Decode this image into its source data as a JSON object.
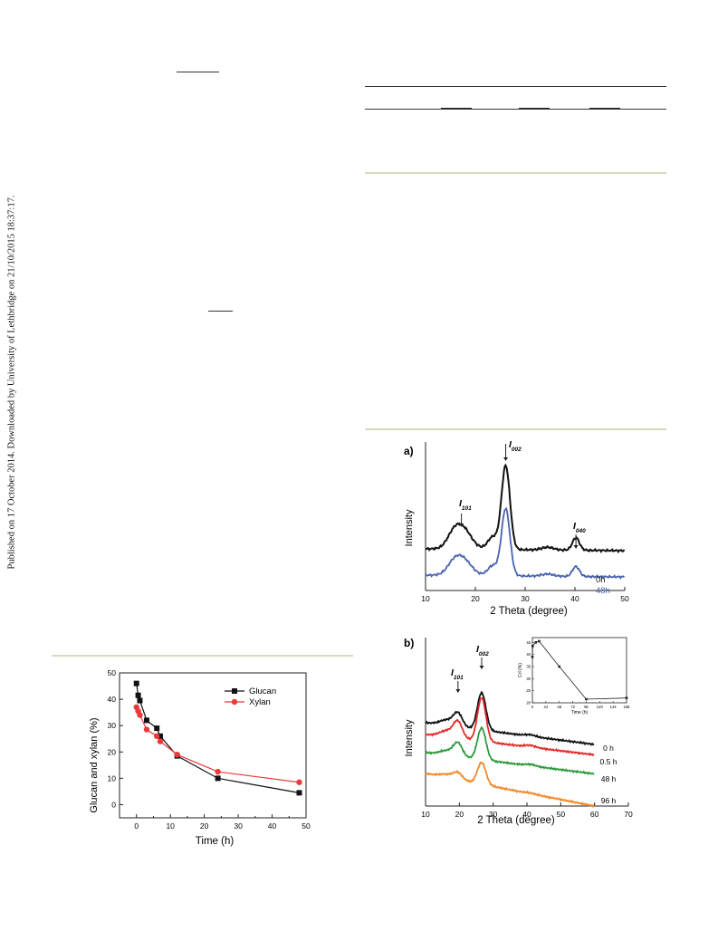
{
  "sidebar": {
    "published_note": "Published on 17 October 2014. Downloaded by University of Lethbridge on 21/10/2015 18:37:17."
  },
  "figures": {
    "glucan": {
      "xlabel": "Time (h)",
      "ylabel": "Glucan and xylan (%)",
      "x_ticks": [
        "0",
        "10",
        "20",
        "30",
        "40",
        "50"
      ],
      "y_ticks": [
        "0",
        "10",
        "20",
        "30",
        "40",
        "50"
      ],
      "legend": [
        "Glucan",
        "Xylan"
      ]
    },
    "xrd_a": {
      "panel_label": "a)",
      "xlabel": "2 Theta (degree)",
      "ylabel": "Intensity",
      "x_ticks": [
        "10",
        "20",
        "30",
        "40",
        "50"
      ],
      "peak_labels": [
        {
          "main": "I",
          "sub": "101"
        },
        {
          "main": "I",
          "sub": "002"
        },
        {
          "main": "I",
          "sub": "040"
        }
      ],
      "curve_labels": [
        "0h",
        "48h"
      ]
    },
    "xrd_b": {
      "panel_label": "b)",
      "xlabel": "2 Theta (degree)",
      "ylabel": "Intensity",
      "x_ticks": [
        "10",
        "20",
        "30",
        "40",
        "50",
        "60",
        "70"
      ],
      "peak_labels": [
        {
          "main": "I",
          "sub": "101"
        },
        {
          "main": "I",
          "sub": "002"
        }
      ],
      "curve_labels": [
        "0 h",
        "0.5 h",
        "48 h",
        "96 h"
      ],
      "inset": {
        "xlabel": "Time (h)",
        "ylabel": "CrI (%)",
        "x_ticks": [
          "0",
          "24",
          "48",
          "72",
          "96",
          "120",
          "144",
          "168"
        ],
        "y_ticks": [
          "20",
          "25",
          "30",
          "35",
          "40",
          "45"
        ]
      }
    }
  },
  "colors": {
    "glucan": "#111111",
    "xylan": "#e83a3a",
    "curve_0h": "#111111",
    "curve_48h_a": "#4a63b0",
    "curve_05h": "#e52b2b",
    "curve_48h_b": "#2e9a3c",
    "curve_96h": "#f08a2a"
  },
  "chart_data": [
    {
      "type": "line",
      "xlabel": "Time (h)",
      "ylabel": "Glucan and xylan (%)",
      "xlim": [
        -5,
        50
      ],
      "ylim": [
        -5,
        50
      ],
      "series": [
        {
          "name": "Glucan",
          "x": [
            0,
            0.5,
            1,
            3,
            6,
            7,
            12,
            24,
            48
          ],
          "y": [
            46,
            41.5,
            39.5,
            32,
            29,
            26,
            18.5,
            10,
            4.5
          ]
        },
        {
          "name": "Xylan",
          "x": [
            0,
            0.5,
            1,
            3,
            6,
            7,
            12,
            24,
            48
          ],
          "y": [
            37,
            35.5,
            34,
            28.5,
            26,
            24,
            19,
            12.5,
            8.5
          ]
        }
      ]
    },
    {
      "type": "line",
      "xlabel": "2 Theta (degree)",
      "ylabel": "Intensity",
      "xlim": [
        10,
        50
      ],
      "series": [
        {
          "name": "0h",
          "peaks": [
            {
              "x": 17.2,
              "label": "I101"
            },
            {
              "x": 26.1,
              "label": "I002"
            },
            {
              "x": 40.2,
              "label": "I040"
            }
          ]
        },
        {
          "name": "48h",
          "peaks": [
            {
              "x": 17.2
            },
            {
              "x": 26.1
            },
            {
              "x": 40.2
            }
          ]
        }
      ]
    },
    {
      "type": "line",
      "xlabel": "2 Theta (degree)",
      "ylabel": "Intensity",
      "xlim": [
        10,
        70
      ],
      "series": [
        {
          "name": "0 h",
          "peaks": [
            {
              "x": 19.5,
              "label": "I101"
            },
            {
              "x": 26.5,
              "label": "I002"
            }
          ]
        },
        {
          "name": "0.5 h",
          "peaks": [
            {
              "x": 19.5
            },
            {
              "x": 26.5
            }
          ]
        },
        {
          "name": "48 h",
          "peaks": [
            {
              "x": 19.5
            },
            {
              "x": 26.5
            }
          ]
        },
        {
          "name": "96 h",
          "peaks": [
            {
              "x": 19.5
            },
            {
              "x": 26.5
            }
          ]
        }
      ],
      "inset": {
        "type": "line",
        "xlabel": "Time (h)",
        "ylabel": "CrI (%)",
        "xlim": [
          0,
          168
        ],
        "ylim": [
          20,
          47
        ],
        "x": [
          0,
          0.5,
          6,
          12,
          48,
          96,
          168
        ],
        "y": [
          39,
          43.5,
          45,
          45.5,
          35,
          21.5,
          22
        ]
      }
    }
  ]
}
